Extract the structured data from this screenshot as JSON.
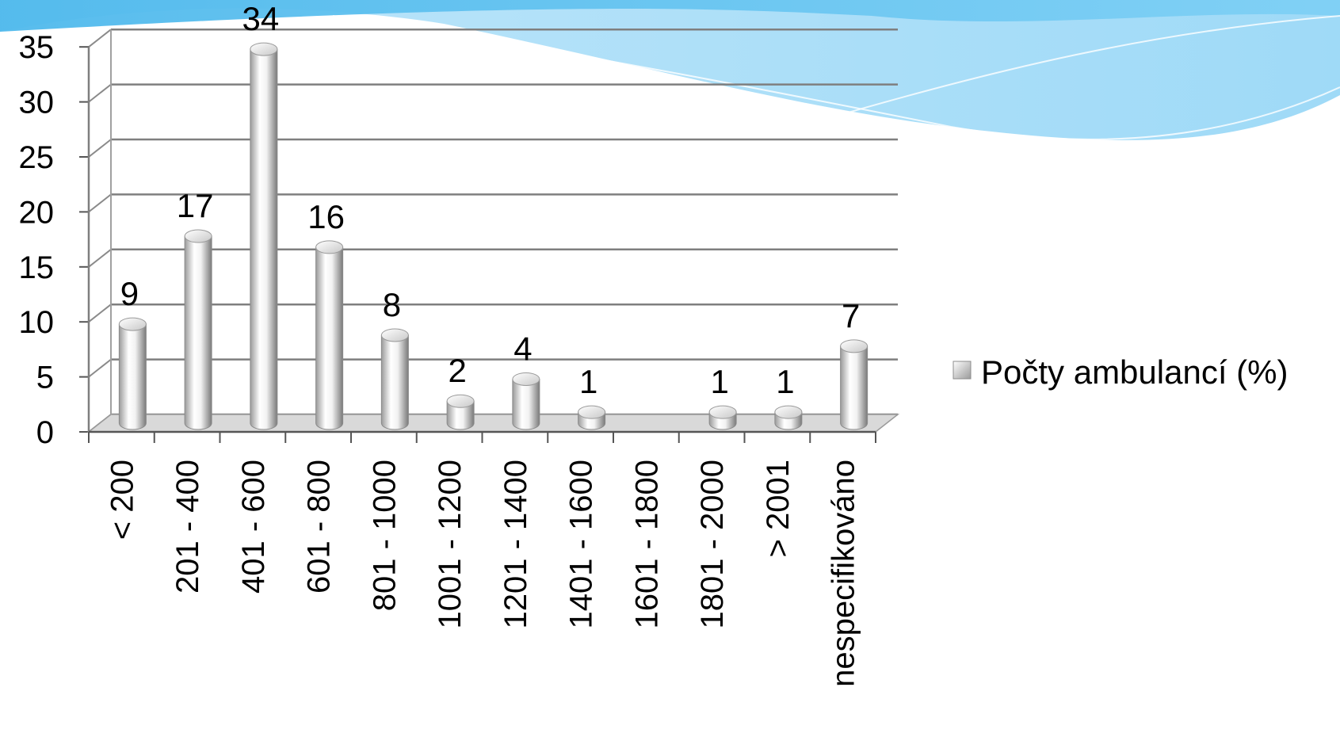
{
  "chart_data": {
    "type": "bar",
    "style": "3d-cylinder",
    "categories": [
      "< 200",
      "201 - 400",
      "401 - 600",
      "601 - 800",
      "801 - 1000",
      "1001 - 1200",
      "1201 - 1400",
      "1401 - 1600",
      "1601 - 1800",
      "1801 - 2000",
      "> 2001",
      "nespecifikováno"
    ],
    "series": [
      {
        "name": "Počty ambulancí (%)",
        "values": [
          9,
          17,
          34,
          16,
          8,
          2,
          4,
          1,
          null,
          1,
          1,
          7
        ],
        "data_labels": [
          "9",
          "17",
          "34",
          "16",
          "8",
          "2",
          "4",
          "1",
          "",
          "1",
          "1",
          "7"
        ]
      }
    ],
    "ylim": [
      0,
      35
    ],
    "yticks": [
      "0",
      "5",
      "10",
      "15",
      "20",
      "25",
      "30",
      "35"
    ],
    "grid": true,
    "legend": "right",
    "colors": {
      "bar_light": "#ffffff",
      "bar_dark": "#8c8c8c",
      "gridline": "#7f7f7f",
      "wave": "#5ec4f2"
    }
  }
}
